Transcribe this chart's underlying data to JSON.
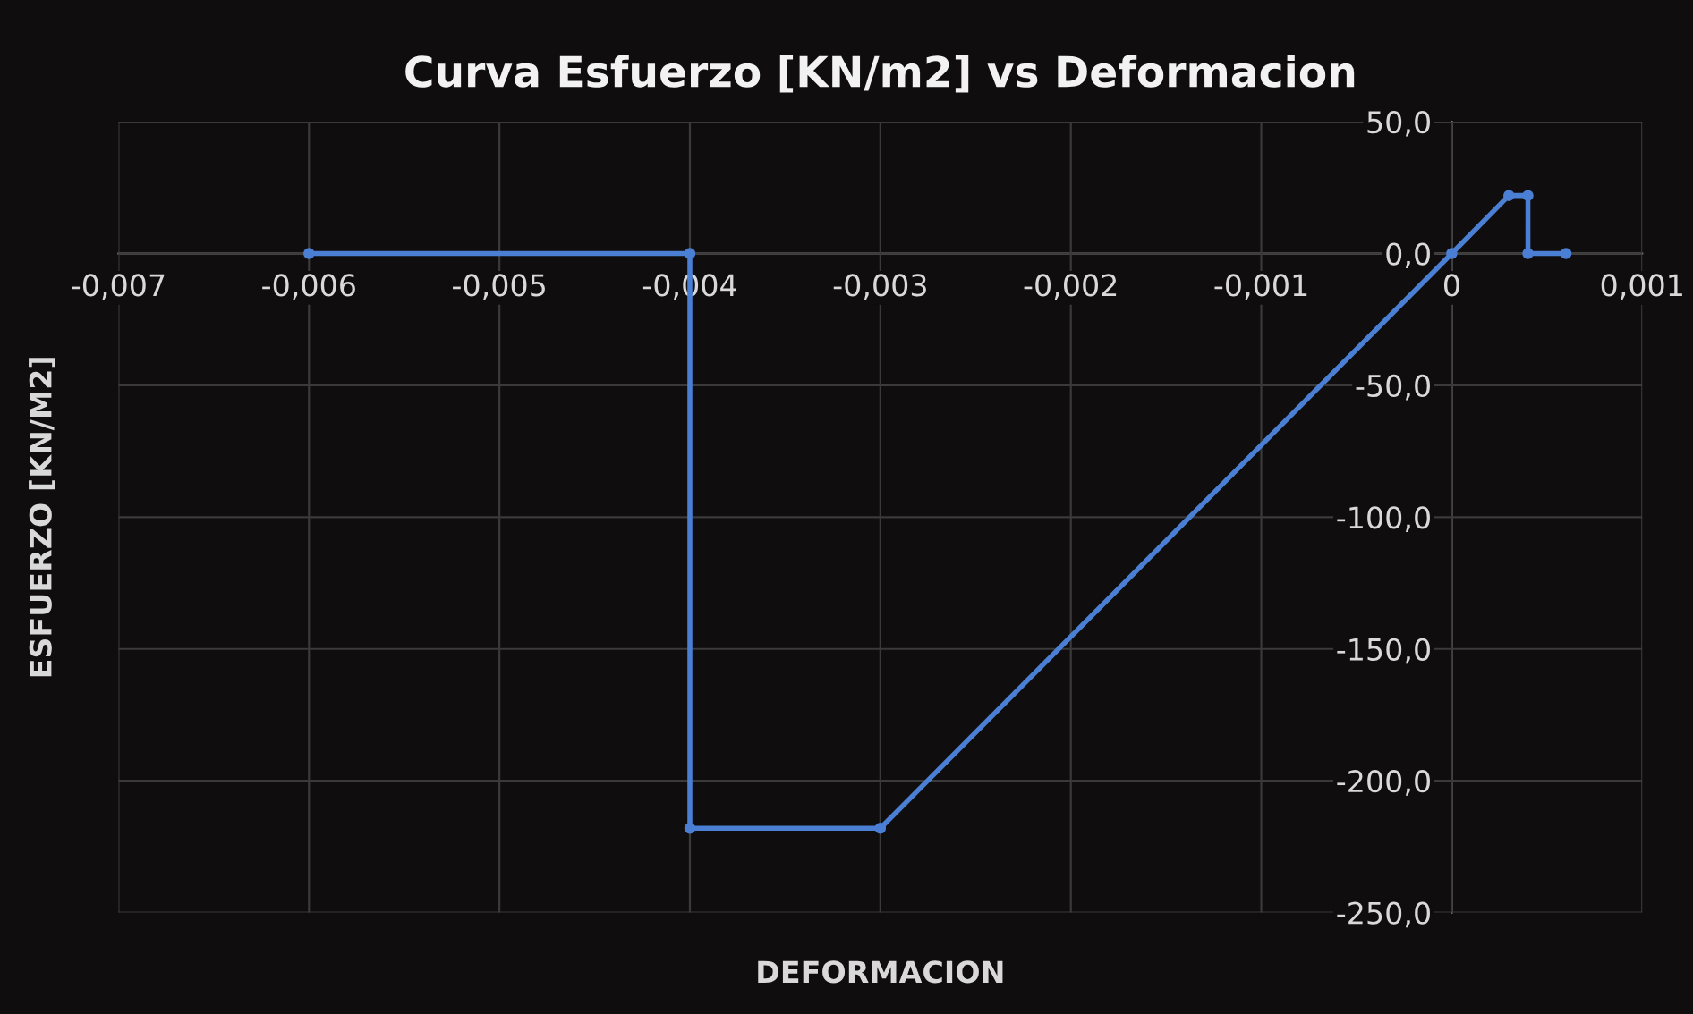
{
  "chart_data": {
    "type": "line",
    "title": "Curva Esfuerzo [KN/m2] vs Deformacion",
    "xlabel": "DEFORMACION",
    "ylabel": "ESFUERZO [KN/M2]",
    "x": [
      -0.006,
      -0.004,
      -0.004,
      -0.003,
      0,
      0.0003,
      0.0004,
      0.0004,
      0.0006
    ],
    "series": [
      {
        "color": "#4a7fd4",
        "values": [
          0,
          0,
          -218,
          -218,
          0,
          22,
          22,
          0,
          0
        ]
      }
    ],
    "xlim": [
      -0.007,
      0.001
    ],
    "ylim": [
      -250,
      50
    ],
    "xticks": [
      {
        "value": -0.007,
        "label": "-0,007"
      },
      {
        "value": -0.006,
        "label": "-0,006"
      },
      {
        "value": -0.005,
        "label": "-0,005"
      },
      {
        "value": -0.004,
        "label": "-0,004"
      },
      {
        "value": -0.003,
        "label": "-0,003"
      },
      {
        "value": -0.002,
        "label": "-0,002"
      },
      {
        "value": -0.001,
        "label": "-0,001"
      },
      {
        "value": 0,
        "label": "0"
      },
      {
        "value": 0.001,
        "label": "0,001"
      }
    ],
    "yticks": [
      {
        "value": 50,
        "label": "50,0"
      },
      {
        "value": 0,
        "label": "0,0"
      },
      {
        "value": -50,
        "label": "-50,0"
      },
      {
        "value": -100,
        "label": "-100,0"
      },
      {
        "value": -150,
        "label": "-150,0"
      },
      {
        "value": -200,
        "label": "-200,0"
      },
      {
        "value": -250,
        "label": "-250,0"
      }
    ],
    "grid": true,
    "marker": "circle",
    "line_style": "solid",
    "legend": false
  }
}
